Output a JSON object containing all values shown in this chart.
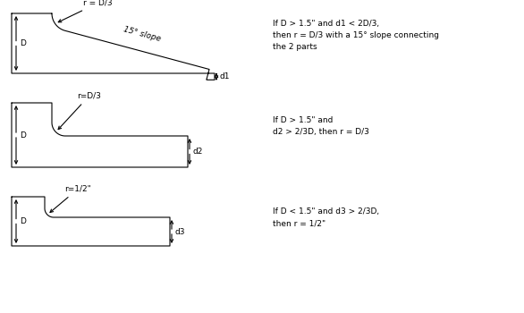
{
  "bg_color": "#ffffff",
  "line_color": "#000000",
  "line_width": 0.8,
  "font_size": 6.5,
  "font_family": "DejaVu Sans",
  "diagram1": {
    "label_r": "r = D/3",
    "label_slope": "15° slope",
    "label_D": "D",
    "label_d1": "d1",
    "annotation1": "If D > 1.5\" and d1 < 2D/3,\nthen r = D/3 with a 15° slope connecting\nthe 2 parts"
  },
  "diagram2": {
    "label_r": "r=D/3",
    "label_D": "D",
    "label_d2": "d2",
    "annotation2": "If D > 1.5\" and\nd2 > 2/3D, then r = D/3"
  },
  "diagram3": {
    "label_r": "r=1/2\"",
    "label_D": "D",
    "label_d3": "d3",
    "annotation3": "If D < 1.5\" and d3 > 2/3D,\nthen r = 1/2\""
  }
}
